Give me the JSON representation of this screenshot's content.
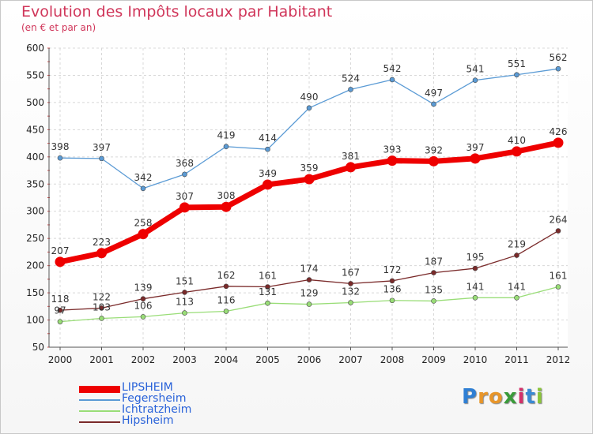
{
  "title": "Evolution des Impôts locaux par Habitant",
  "subtitle": "(en € et par an)",
  "logo": {
    "letters": [
      "P",
      "r",
      "o",
      "x",
      "i",
      "t",
      "i"
    ],
    "colors": [
      "#2f7fd4",
      "#e8962a",
      "#e8962a",
      "#3a9b3a",
      "#d4306a",
      "#3a8ad4",
      "#8ac43a"
    ]
  },
  "chart_data": {
    "type": "line",
    "title": "Evolution des Impôts locaux par Habitant",
    "subtitle": "(en € et par an)",
    "xlabel": "",
    "ylabel": "",
    "ylim": [
      50,
      600
    ],
    "yticks": [
      50,
      100,
      150,
      200,
      250,
      300,
      350,
      400,
      450,
      500,
      550,
      600
    ],
    "x": [
      "2000",
      "2001",
      "2002",
      "2003",
      "2004",
      "2005",
      "2006",
      "2007",
      "2008",
      "2009",
      "2010",
      "2011",
      "2012"
    ],
    "grid": true,
    "legend_position": "bottom-left",
    "series": [
      {
        "name": "LIPSHEIM",
        "color": "#ee0000",
        "values": [
          207,
          223,
          258,
          307,
          308,
          349,
          359,
          381,
          393,
          392,
          397,
          410,
          426
        ]
      },
      {
        "name": "Fegersheim",
        "color": "#5b9bd5",
        "values": [
          398,
          397,
          342,
          368,
          419,
          414,
          490,
          524,
          542,
          497,
          541,
          551,
          562
        ]
      },
      {
        "name": "Ichtratzheim",
        "color": "#99dd77",
        "values": [
          97,
          103,
          106,
          113,
          116,
          131,
          129,
          132,
          136,
          135,
          141,
          141,
          161
        ]
      },
      {
        "name": "Hipsheim",
        "color": "#7a2a2a",
        "values": [
          118,
          122,
          139,
          151,
          162,
          161,
          174,
          167,
          172,
          187,
          195,
          219,
          264
        ]
      }
    ]
  }
}
